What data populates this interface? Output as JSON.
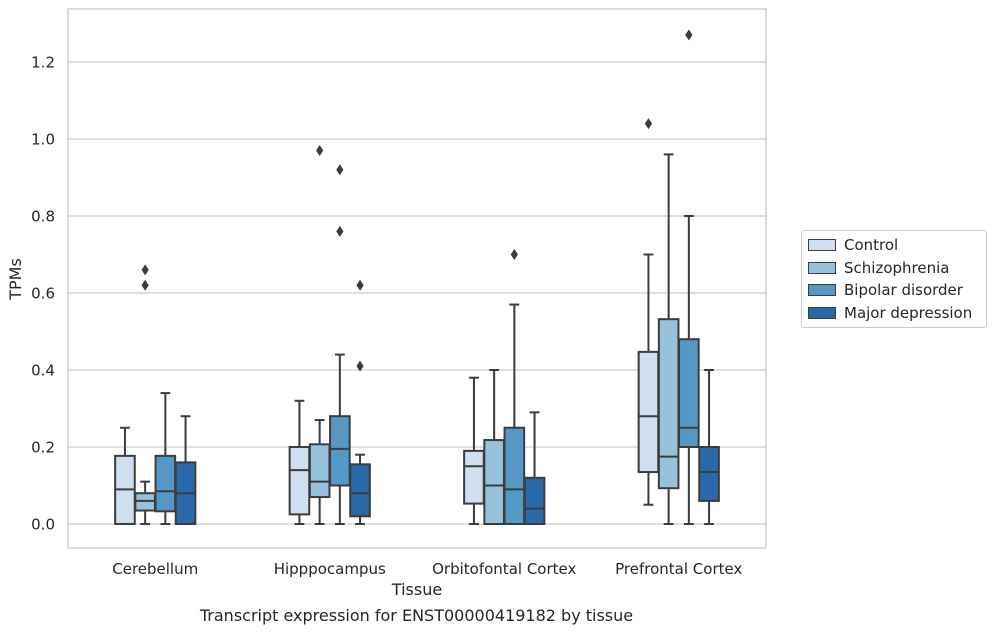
{
  "chart_data": {
    "type": "box",
    "title": "",
    "xlabel": "Tissue",
    "ylabel": "TPMs",
    "ylim": [
      -0.06,
      1.34
    ],
    "yticks": [
      "0.0",
      "0.2",
      "0.4",
      "0.6",
      "0.8",
      "1.0",
      "1.2"
    ],
    "grid": "horizontal",
    "legend_position": "outside-right",
    "categories": [
      "Cerebellum",
      "Hipppocampus",
      "Orbitofontal Cortex",
      "Prefrontal Cortex"
    ],
    "series": [
      {
        "name": "Control",
        "color": "#d0dff0",
        "boxes": [
          {
            "whisker_low": 0.0,
            "q1": 0.0,
            "median": 0.09,
            "q3": 0.177,
            "whisker_high": 0.25,
            "outliers": []
          },
          {
            "whisker_low": 0.0,
            "q1": 0.025,
            "median": 0.14,
            "q3": 0.2,
            "whisker_high": 0.32,
            "outliers": []
          },
          {
            "whisker_low": 0.0,
            "q1": 0.053,
            "median": 0.15,
            "q3": 0.19,
            "whisker_high": 0.38,
            "outliers": []
          },
          {
            "whisker_low": 0.05,
            "q1": 0.135,
            "median": 0.28,
            "q3": 0.447,
            "whisker_high": 0.7,
            "outliers": [
              1.04
            ]
          }
        ]
      },
      {
        "name": "Schizophrenia",
        "color": "#98c2dc",
        "boxes": [
          {
            "whisker_low": 0.0,
            "q1": 0.035,
            "median": 0.06,
            "q3": 0.08,
            "whisker_high": 0.11,
            "outliers": [
              0.62,
              0.66
            ]
          },
          {
            "whisker_low": 0.0,
            "q1": 0.07,
            "median": 0.11,
            "q3": 0.207,
            "whisker_high": 0.27,
            "outliers": [
              0.97
            ]
          },
          {
            "whisker_low": 0.0,
            "q1": 0.0,
            "median": 0.1,
            "q3": 0.218,
            "whisker_high": 0.4,
            "outliers": []
          },
          {
            "whisker_low": 0.0,
            "q1": 0.093,
            "median": 0.175,
            "q3": 0.532,
            "whisker_high": 0.96,
            "outliers": []
          }
        ]
      },
      {
        "name": "Bipolar disorder",
        "color": "#5598c5",
        "boxes": [
          {
            "whisker_low": 0.0,
            "q1": 0.033,
            "median": 0.085,
            "q3": 0.177,
            "whisker_high": 0.34,
            "outliers": []
          },
          {
            "whisker_low": 0.0,
            "q1": 0.1,
            "median": 0.195,
            "q3": 0.28,
            "whisker_high": 0.44,
            "outliers": [
              0.76,
              0.92
            ]
          },
          {
            "whisker_low": 0.0,
            "q1": 0.0,
            "median": 0.09,
            "q3": 0.25,
            "whisker_high": 0.57,
            "outliers": [
              0.7
            ]
          },
          {
            "whisker_low": 0.0,
            "q1": 0.2,
            "median": 0.25,
            "q3": 0.48,
            "whisker_high": 0.8,
            "outliers": [
              1.27
            ]
          }
        ]
      },
      {
        "name": "Major depression",
        "color": "#2a69a9",
        "boxes": [
          {
            "whisker_low": 0.0,
            "q1": 0.0,
            "median": 0.08,
            "q3": 0.16,
            "whisker_high": 0.28,
            "outliers": []
          },
          {
            "whisker_low": 0.0,
            "q1": 0.02,
            "median": 0.08,
            "q3": 0.155,
            "whisker_high": 0.18,
            "outliers": [
              0.41,
              0.62
            ]
          },
          {
            "whisker_low": 0.0,
            "q1": 0.0,
            "median": 0.04,
            "q3": 0.12,
            "whisker_high": 0.29,
            "outliers": []
          },
          {
            "whisker_low": 0.0,
            "q1": 0.06,
            "median": 0.135,
            "q3": 0.2,
            "whisker_high": 0.4,
            "outliers": []
          }
        ]
      }
    ]
  },
  "caption": "Transcript expression for ENST00000419182 by tissue"
}
